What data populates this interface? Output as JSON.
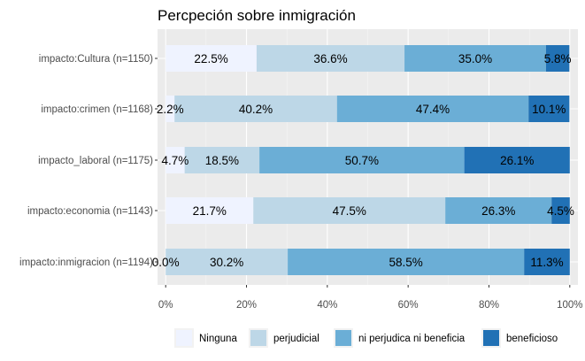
{
  "chart_data": {
    "type": "bar",
    "orientation": "horizontal",
    "stacked": "percent",
    "title": "Percpeción sobre inmigración",
    "xlabel": "",
    "ylabel": "",
    "xlim": [
      0,
      100
    ],
    "x_ticks": [
      "0%",
      "20%",
      "40%",
      "60%",
      "80%",
      "100%"
    ],
    "x_tick_values": [
      0,
      20,
      40,
      60,
      80,
      100
    ],
    "grid": true,
    "legend_position": "bottom",
    "categories": [
      "impacto:Cultura (n=1150)",
      "impacto:crimen (n=1168)",
      "impacto_laboral (n=1175)",
      "impacto:economia (n=1143)",
      "impacto:inmigracion (n=1194)"
    ],
    "series": [
      {
        "name": "Ninguna",
        "color": "#eff3ff",
        "values": [
          22.5,
          2.2,
          4.7,
          21.7,
          0.0
        ],
        "labels": [
          "22.5%",
          "2.2%",
          "4.7%",
          "21.7%",
          "0.0%"
        ]
      },
      {
        "name": "perjudicial",
        "color": "#bdd7e7",
        "values": [
          36.6,
          40.2,
          18.5,
          47.5,
          30.2
        ],
        "labels": [
          "36.6%",
          "40.2%",
          "18.5%",
          "47.5%",
          "30.2%"
        ]
      },
      {
        "name": "ni perjudica ni beneficia",
        "color": "#6baed6",
        "values": [
          35.0,
          47.4,
          50.7,
          26.3,
          58.5
        ],
        "labels": [
          "35.0%",
          "47.4%",
          "50.7%",
          "26.3%",
          "58.5%"
        ]
      },
      {
        "name": "beneficioso",
        "color": "#2171b5",
        "values": [
          5.8,
          10.1,
          26.1,
          4.5,
          11.3
        ],
        "labels": [
          "5.8%",
          "10.1%",
          "26.1%",
          "4.5%",
          "11.3%"
        ]
      }
    ]
  }
}
